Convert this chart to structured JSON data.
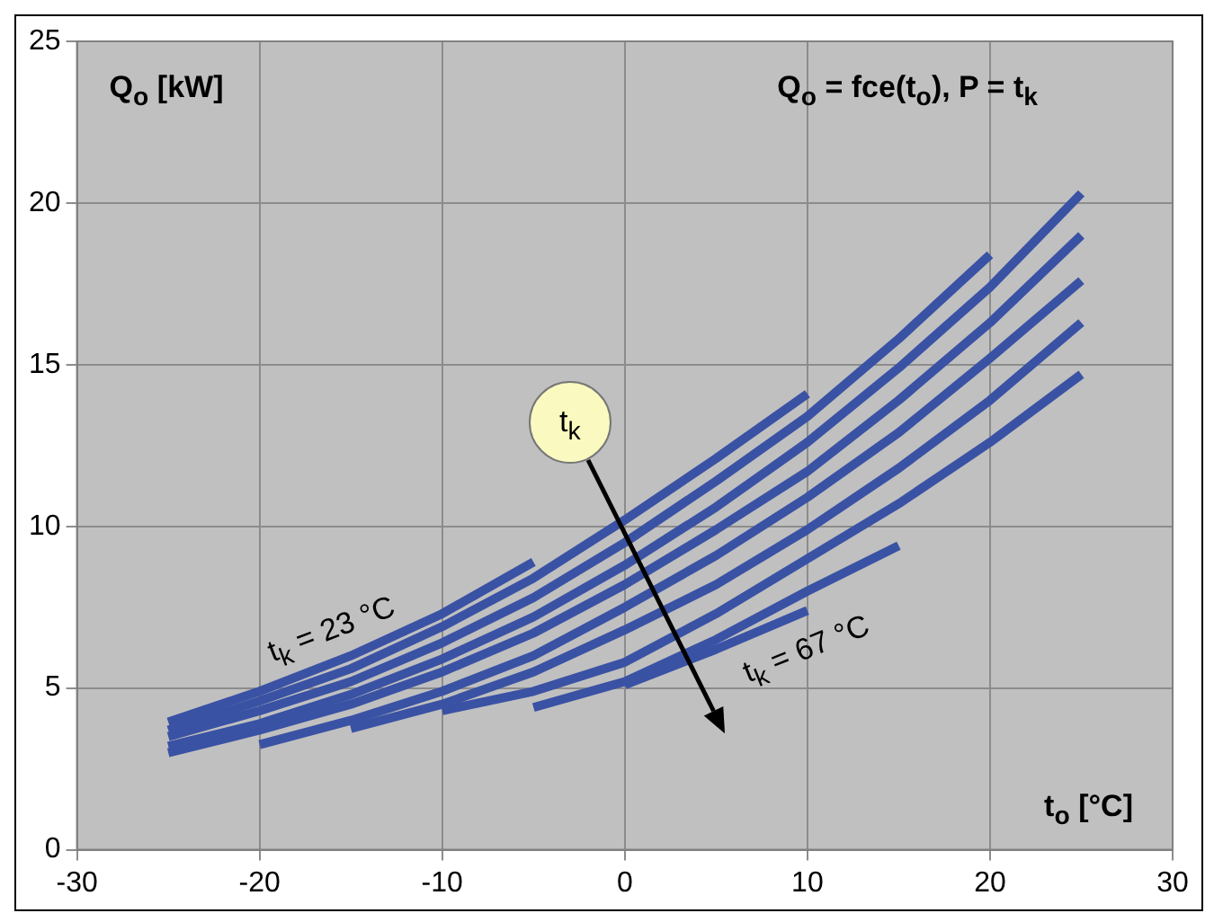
{
  "chart_data": {
    "type": "line",
    "title": "Q$_{o}$ = fce(t$_{o}$), P = t$_{k}$",
    "xlabel": "t$_{o}$ [°C]",
    "ylabel": "Q$_{o}$ [kW]",
    "xlim": [
      -30,
      30
    ],
    "xticks": [
      -30,
      -20,
      -10,
      0,
      10,
      20,
      30
    ],
    "ylim": [
      0,
      25
    ],
    "yticks": [
      0,
      5,
      10,
      15,
      20,
      25
    ],
    "grid": true,
    "marker": "none",
    "line_style": "solid",
    "annotations": [
      "t$_{k}$ = 23 °C",
      "t$_{k}$ = 67 °C",
      "t$_{k}$"
    ],
    "series": [
      {
        "color": "#3a52a4",
        "x": [
          -25,
          -20,
          -15,
          -10,
          -5
        ],
        "values": [
          3.95,
          4.9,
          6.0,
          7.3,
          8.9
        ]
      },
      {
        "color": "#3a52a4",
        "x": [
          -25,
          -20,
          -15,
          -10,
          -5,
          0,
          5,
          10
        ],
        "values": [
          3.7,
          4.6,
          5.6,
          6.9,
          8.4,
          10.2,
          12.1,
          14.1
        ]
      },
      {
        "color": "#3a52a4",
        "x": [
          -25,
          -20,
          -15,
          -10,
          -5,
          0,
          5,
          10,
          15,
          20
        ],
        "values": [
          3.5,
          4.3,
          5.2,
          6.4,
          7.8,
          9.5,
          11.4,
          13.4,
          15.8,
          18.4
        ]
      },
      {
        "color": "#3a52a4",
        "x": [
          -25,
          -20,
          -15,
          -10,
          -5,
          0,
          5,
          10,
          15,
          20,
          25
        ],
        "values": [
          3.2,
          3.9,
          4.8,
          5.9,
          7.2,
          8.8,
          10.6,
          12.6,
          14.9,
          17.4,
          20.3
        ]
      },
      {
        "color": "#3a52a4",
        "x": [
          -25,
          -20,
          -15,
          -10,
          -5,
          0,
          5,
          10,
          15,
          20,
          25
        ],
        "values": [
          3.0,
          3.7,
          4.5,
          5.5,
          6.7,
          8.2,
          9.9,
          11.7,
          13.9,
          16.3,
          19.0
        ]
      },
      {
        "color": "#3a52a4",
        "x": [
          -20,
          -15,
          -10,
          -5,
          0,
          5,
          10,
          15,
          20,
          25
        ],
        "values": [
          3.25,
          4.0,
          4.9,
          6.0,
          7.5,
          9.1,
          10.9,
          12.9,
          15.2,
          17.6
        ]
      },
      {
        "color": "#3a52a4",
        "x": [
          -15,
          -10,
          -5,
          0,
          5,
          10,
          15,
          20,
          25
        ],
        "values": [
          3.75,
          4.5,
          5.5,
          6.8,
          8.2,
          9.9,
          11.8,
          13.9,
          16.3
        ]
      },
      {
        "color": "#3a52a4",
        "x": [
          -10,
          -5,
          0,
          5,
          10,
          15,
          20,
          25
        ],
        "values": [
          4.3,
          4.9,
          5.8,
          7.3,
          9.0,
          10.7,
          12.6,
          14.7
        ]
      },
      {
        "color": "#3a52a4",
        "x": [
          -5,
          0,
          5,
          10,
          15
        ],
        "values": [
          4.4,
          5.2,
          6.5,
          8.0,
          9.4
        ]
      },
      {
        "color": "#3a52a4",
        "x": [
          0,
          5,
          10
        ],
        "values": [
          5.1,
          6.2,
          7.4
        ]
      }
    ]
  }
}
